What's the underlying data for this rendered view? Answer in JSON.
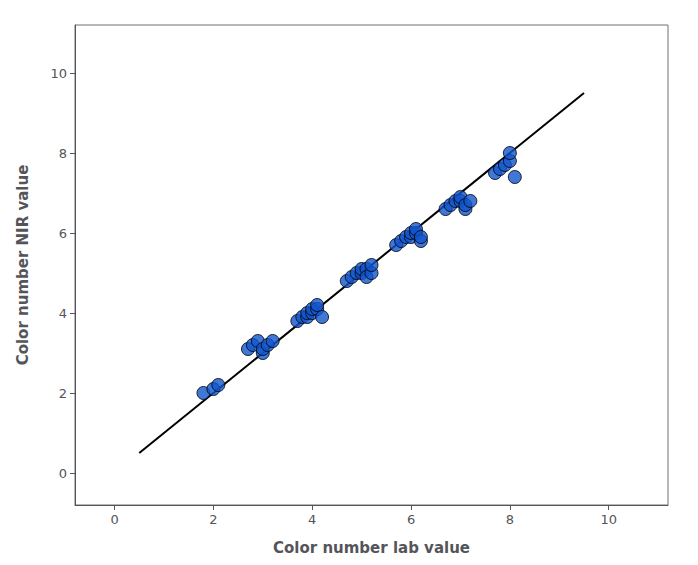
{
  "chart_data": {
    "type": "scatter",
    "xlabel": "Color number lab value",
    "ylabel": "Color number NIR value",
    "series": [
      {
        "type": "line",
        "color": "#000000",
        "x": [
          0.5,
          9.5
        ],
        "values": [
          0.5,
          9.5
        ]
      },
      {
        "type": "scatter",
        "color": "#1155cc",
        "x": [
          1.8,
          2.0,
          2.1,
          2.7,
          2.8,
          2.9,
          3.0,
          3.0,
          3.1,
          3.2,
          3.7,
          3.8,
          3.9,
          3.9,
          4.0,
          4.0,
          4.1,
          4.1,
          4.2,
          4.7,
          4.8,
          4.9,
          5.0,
          5.0,
          5.1,
          5.1,
          5.2,
          5.2,
          5.7,
          5.8,
          5.9,
          6.0,
          6.0,
          6.1,
          6.1,
          6.2,
          6.2,
          6.7,
          6.8,
          6.9,
          7.0,
          7.0,
          7.1,
          7.1,
          7.2,
          7.7,
          7.8,
          7.9,
          8.0,
          8.0,
          8.1
        ],
        "values": [
          2.0,
          2.1,
          2.2,
          3.1,
          3.2,
          3.3,
          3.0,
          3.1,
          3.2,
          3.3,
          3.8,
          3.9,
          3.9,
          4.0,
          4.0,
          4.1,
          4.1,
          4.2,
          3.9,
          4.8,
          4.9,
          5.0,
          5.0,
          5.1,
          5.1,
          4.9,
          5.0,
          5.2,
          5.7,
          5.8,
          5.9,
          5.9,
          6.0,
          6.0,
          6.1,
          5.8,
          5.9,
          6.6,
          6.7,
          6.8,
          6.8,
          6.9,
          6.6,
          6.7,
          6.8,
          7.5,
          7.6,
          7.7,
          7.8,
          8.0,
          7.4
        ]
      }
    ],
    "xlim": [
      -0.8,
      11.2
    ],
    "ylim": [
      -0.8,
      11.2
    ],
    "xticks": [
      0,
      2,
      4,
      6,
      8,
      10
    ],
    "yticks": [
      0,
      2,
      4,
      6,
      8,
      10
    ],
    "grid": false
  }
}
